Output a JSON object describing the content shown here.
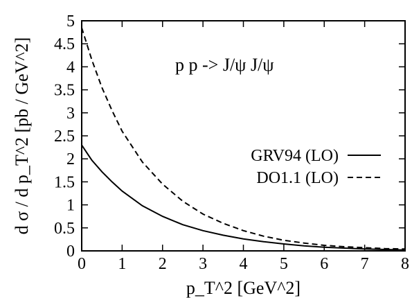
{
  "chart_data": {
    "type": "line",
    "title": "",
    "annotation": "p p -> J/ψ J/ψ",
    "xlabel": "p_T^2 [GeV^2]",
    "ylabel": "d σ / d p_T^2 [pb / GeV^2]",
    "xlim": [
      0,
      8
    ],
    "ylim": [
      0,
      5
    ],
    "x_ticks": [
      "0",
      "1",
      "2",
      "3",
      "4",
      "5",
      "6",
      "7",
      "8"
    ],
    "y_ticks": [
      "0",
      "0.5",
      "1",
      "1.5",
      "2",
      "2.5",
      "3",
      "3.5",
      "4",
      "4.5",
      "5"
    ],
    "grid": false,
    "legend_position": "right",
    "series": [
      {
        "name": "GRV94 (LO)",
        "style": "solid",
        "x": [
          0,
          0.25,
          0.5,
          0.75,
          1,
          1.5,
          2,
          2.5,
          3,
          3.5,
          4,
          4.5,
          5,
          5.5,
          6,
          6.5,
          7,
          7.5,
          8
        ],
        "y": [
          2.3,
          1.97,
          1.72,
          1.5,
          1.3,
          0.98,
          0.75,
          0.57,
          0.44,
          0.34,
          0.26,
          0.2,
          0.15,
          0.11,
          0.08,
          0.06,
          0.04,
          0.03,
          0.02
        ]
      },
      {
        "name": "DO1.1 (LO)",
        "style": "dashed",
        "x": [
          0,
          0.25,
          0.5,
          0.75,
          1,
          1.5,
          2,
          2.5,
          3,
          3.5,
          4,
          4.5,
          5,
          5.5,
          6,
          6.5,
          7,
          7.5,
          8
        ],
        "y": [
          4.85,
          4.15,
          3.55,
          3.05,
          2.6,
          1.93,
          1.45,
          1.08,
          0.8,
          0.6,
          0.44,
          0.32,
          0.23,
          0.17,
          0.12,
          0.09,
          0.07,
          0.05,
          0.04
        ]
      }
    ]
  }
}
